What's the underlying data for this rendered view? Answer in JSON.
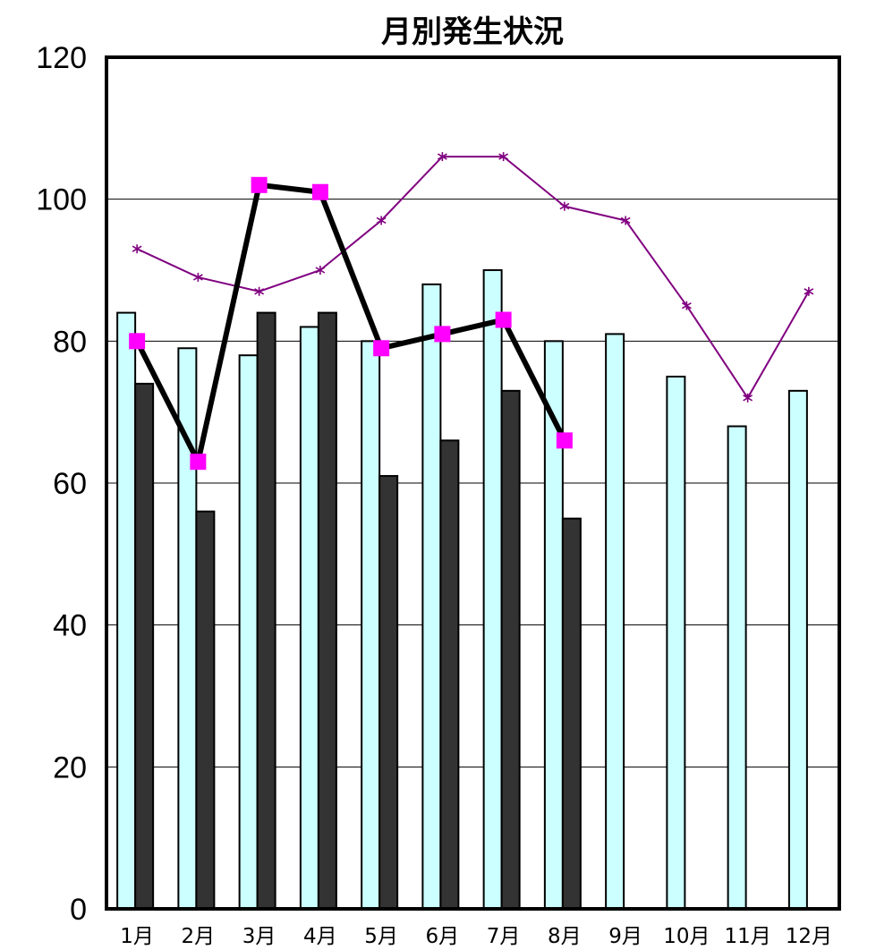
{
  "chart_data": {
    "type": "bar",
    "title": "月別発生状況",
    "xlabel": "",
    "ylabel": "",
    "categories": [
      "1月",
      "2月",
      "3月",
      "4月",
      "5月",
      "6月",
      "7月",
      "8月",
      "9月",
      "10月",
      "11月",
      "12月"
    ],
    "ylim": [
      0,
      120
    ],
    "yticks": [
      0,
      20,
      40,
      60,
      80,
      100,
      120
    ],
    "grid": true,
    "legend": "none",
    "series": [
      {
        "type": "bar",
        "color": "#CCFFFF",
        "values": [
          84,
          79,
          78,
          82,
          80,
          88,
          90,
          80,
          81,
          75,
          68,
          73
        ]
      },
      {
        "type": "bar",
        "color": "#333333",
        "values": [
          74,
          56,
          84,
          84,
          61,
          66,
          73,
          55,
          null,
          null,
          null,
          null
        ]
      },
      {
        "type": "line",
        "color": "#800080",
        "marker": "asterisk",
        "values": [
          93,
          89,
          87,
          90,
          97,
          106,
          106,
          99,
          97,
          85,
          72,
          87
        ]
      },
      {
        "type": "line",
        "color": "#000000",
        "marker_color": "#FF00FF",
        "marker": "square",
        "values": [
          80,
          63,
          102,
          101,
          79,
          81,
          83,
          66,
          null,
          null,
          null,
          null
        ]
      }
    ]
  }
}
